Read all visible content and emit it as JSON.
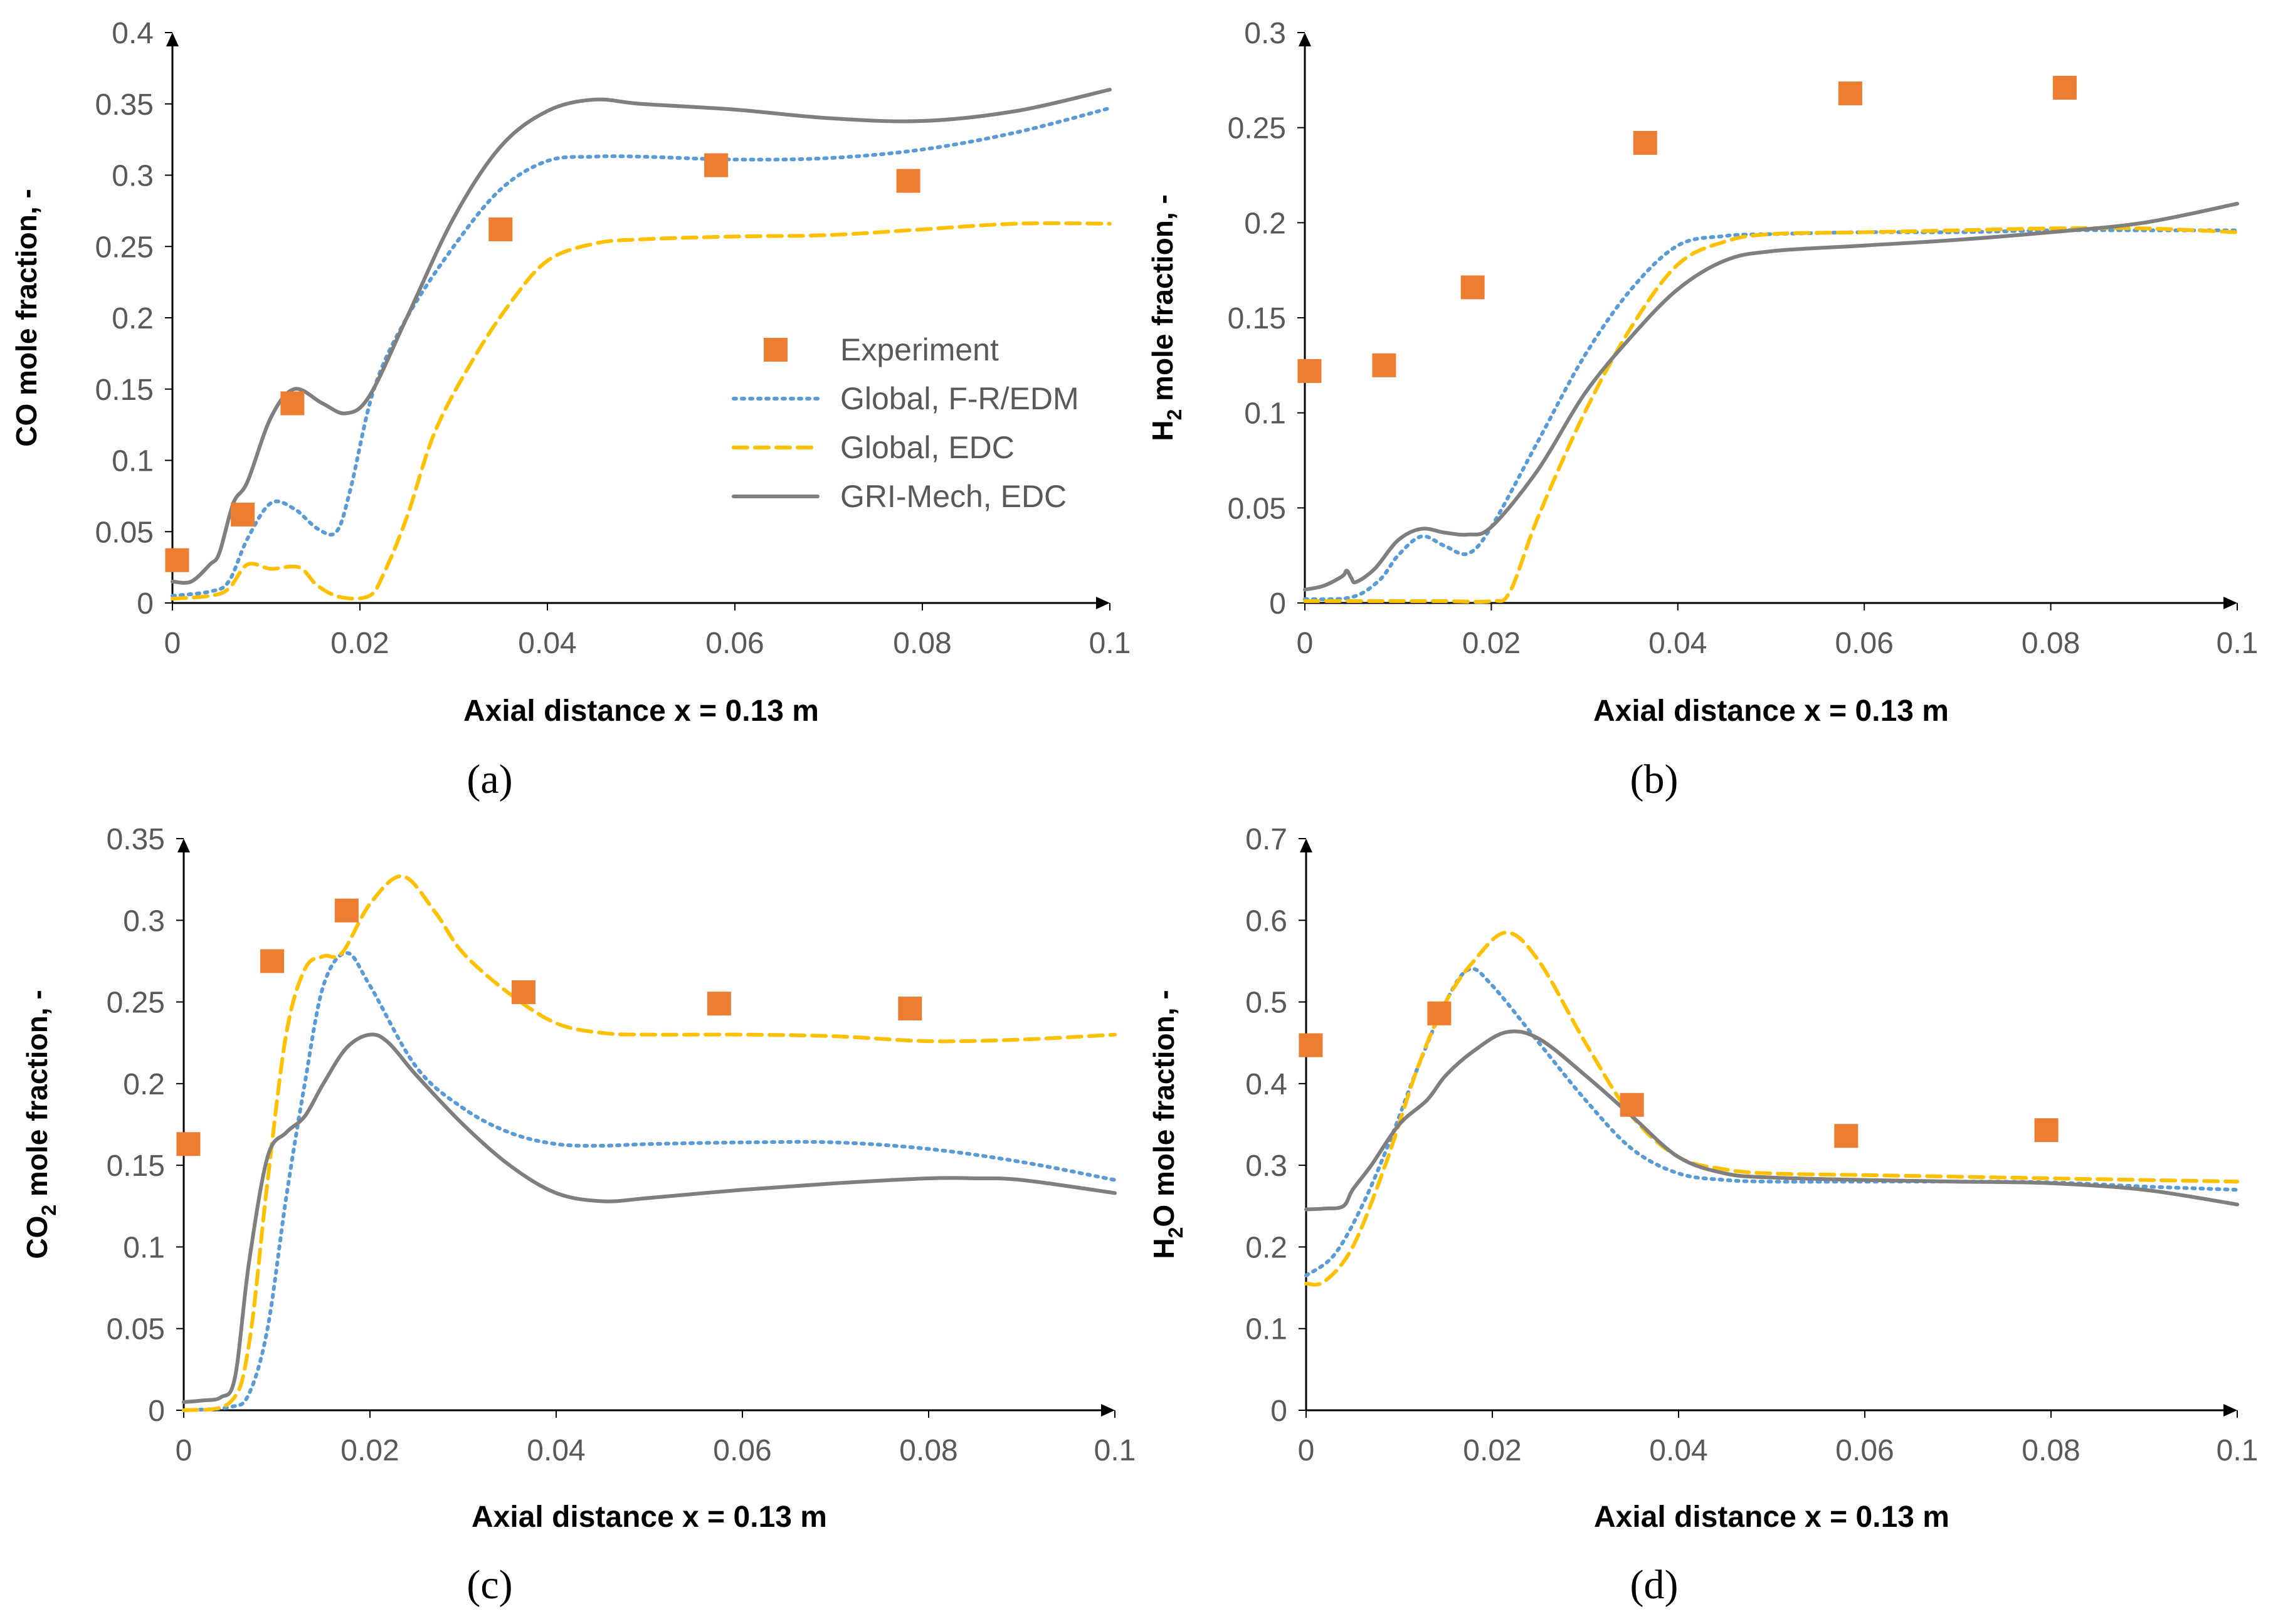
{
  "colors": {
    "experiment": "#ED7D31",
    "global_fr_edm": "#5B9BD5",
    "global_edc": "#FFC000",
    "gri_mech_edc": "#7F7F7F",
    "axis": "#000000",
    "tick_text": "#595959"
  },
  "legend": {
    "experiment": "Experiment",
    "global_fr_edm": "Global, F-R/EDM",
    "global_edc": "Global, EDC",
    "gri_mech_edc": "GRI-Mech, EDC"
  },
  "chart_data": [
    {
      "type": "line",
      "panel": "a",
      "caption": "(a)",
      "xlabel": "Axial distance x = 0.13 m",
      "ylabel": "CO mole fraction, -",
      "xlim": [
        0,
        0.1
      ],
      "ylim": [
        0,
        0.4
      ],
      "xticks": [
        "0",
        "0.02",
        "0.04",
        "0.06",
        "0.08",
        "0.1"
      ],
      "yticks": [
        "0",
        "0.05",
        "0.1",
        "0.15",
        "0.2",
        "0.25",
        "0.3",
        "0.35",
        "0.4"
      ],
      "xtick_values": [
        0,
        0.02,
        0.04,
        0.06,
        0.08,
        0.1
      ],
      "ytick_values": [
        0,
        0.05,
        0.1,
        0.15,
        0.2,
        0.25,
        0.3,
        0.35,
        0.4
      ],
      "legend_visible": true,
      "legend_position": "center-right",
      "series": [
        {
          "name": "Experiment",
          "kind": "scatter",
          "x": [
            0.0005,
            0.0075,
            0.0128,
            0.035,
            0.058,
            0.0785
          ],
          "y": [
            0.03,
            0.062,
            0.14,
            0.262,
            0.307,
            0.296
          ]
        },
        {
          "name": "Global, F-R/EDM",
          "kind": "dotted",
          "x": [
            0,
            0.004,
            0.006,
            0.008,
            0.0105,
            0.013,
            0.0155,
            0.0175,
            0.019,
            0.0215,
            0.025,
            0.03,
            0.035,
            0.04,
            0.045,
            0.05,
            0.06,
            0.07,
            0.08,
            0.09,
            0.1
          ],
          "y": [
            0.005,
            0.008,
            0.015,
            0.045,
            0.07,
            0.066,
            0.052,
            0.05,
            0.08,
            0.15,
            0.2,
            0.25,
            0.29,
            0.31,
            0.313,
            0.313,
            0.311,
            0.312,
            0.318,
            0.33,
            0.347
          ]
        },
        {
          "name": "Global, EDC",
          "kind": "dashed",
          "x": [
            0,
            0.004,
            0.006,
            0.008,
            0.0105,
            0.0135,
            0.0155,
            0.018,
            0.021,
            0.0225,
            0.025,
            0.028,
            0.032,
            0.036,
            0.04,
            0.045,
            0.05,
            0.06,
            0.07,
            0.08,
            0.09,
            0.1
          ],
          "y": [
            0.003,
            0.005,
            0.01,
            0.027,
            0.024,
            0.025,
            0.012,
            0.004,
            0.005,
            0.02,
            0.06,
            0.12,
            0.17,
            0.21,
            0.24,
            0.252,
            0.255,
            0.257,
            0.258,
            0.262,
            0.266,
            0.266
          ]
        },
        {
          "name": "GRI-Mech, EDC",
          "kind": "solid",
          "x": [
            0,
            0.002,
            0.004,
            0.005,
            0.0065,
            0.008,
            0.0105,
            0.013,
            0.016,
            0.0185,
            0.021,
            0.025,
            0.03,
            0.035,
            0.04,
            0.045,
            0.05,
            0.06,
            0.07,
            0.08,
            0.09,
            0.1
          ],
          "y": [
            0.015,
            0.015,
            0.027,
            0.035,
            0.07,
            0.085,
            0.13,
            0.15,
            0.14,
            0.133,
            0.145,
            0.2,
            0.27,
            0.32,
            0.345,
            0.353,
            0.35,
            0.346,
            0.34,
            0.338,
            0.345,
            0.36
          ]
        }
      ]
    },
    {
      "type": "line",
      "panel": "b",
      "caption": "(b)",
      "xlabel": "Axial distance x = 0.13 m",
      "ylabel": "H2 mole fraction, -",
      "ylabel_main": "H",
      "ylabel_sub": "2",
      "ylabel_rest": " mole fraction, -",
      "xlim": [
        0,
        0.1
      ],
      "ylim": [
        0,
        0.3
      ],
      "xticks": [
        "0",
        "0.02",
        "0.04",
        "0.06",
        "0.08",
        "0.1"
      ],
      "yticks": [
        "0",
        "0.05",
        "0.1",
        "0.15",
        "0.2",
        "0.25",
        "0.3"
      ],
      "xtick_values": [
        0,
        0.02,
        0.04,
        0.06,
        0.08,
        0.1
      ],
      "ytick_values": [
        0,
        0.05,
        0.1,
        0.15,
        0.2,
        0.25,
        0.3
      ],
      "legend_visible": false,
      "series": [
        {
          "name": "Experiment",
          "kind": "scatter",
          "x": [
            0.0005,
            0.0085,
            0.018,
            0.0365,
            0.0585,
            0.0815
          ],
          "y": [
            0.122,
            0.125,
            0.166,
            0.242,
            0.268,
            0.271
          ]
        },
        {
          "name": "Global, F-R/EDM",
          "kind": "dotted",
          "x": [
            0,
            0.005,
            0.008,
            0.01,
            0.0125,
            0.015,
            0.0175,
            0.02,
            0.025,
            0.03,
            0.035,
            0.04,
            0.045,
            0.05,
            0.06,
            0.07,
            0.08,
            0.09,
            0.1
          ],
          "y": [
            0.002,
            0.003,
            0.012,
            0.025,
            0.035,
            0.03,
            0.026,
            0.04,
            0.085,
            0.13,
            0.165,
            0.188,
            0.193,
            0.194,
            0.195,
            0.195,
            0.196,
            0.196,
            0.196
          ]
        },
        {
          "name": "Global, EDC",
          "kind": "dashed",
          "x": [
            0,
            0.005,
            0.01,
            0.015,
            0.02,
            0.022,
            0.025,
            0.03,
            0.035,
            0.04,
            0.045,
            0.05,
            0.06,
            0.07,
            0.08,
            0.09,
            0.1
          ],
          "y": [
            0.001,
            0.001,
            0.001,
            0.001,
            0.001,
            0.006,
            0.045,
            0.1,
            0.145,
            0.178,
            0.19,
            0.194,
            0.195,
            0.196,
            0.197,
            0.197,
            0.195
          ]
        },
        {
          "name": "GRI-Mech, EDC",
          "kind": "solid",
          "x": [
            0,
            0.002,
            0.004,
            0.0045,
            0.005,
            0.0055,
            0.0075,
            0.01,
            0.0125,
            0.015,
            0.0175,
            0.02,
            0.025,
            0.03,
            0.035,
            0.04,
            0.045,
            0.05,
            0.06,
            0.07,
            0.08,
            0.09,
            0.1
          ],
          "y": [
            0.007,
            0.009,
            0.014,
            0.017,
            0.013,
            0.011,
            0.018,
            0.033,
            0.039,
            0.037,
            0.036,
            0.04,
            0.07,
            0.11,
            0.14,
            0.165,
            0.18,
            0.185,
            0.188,
            0.191,
            0.195,
            0.2,
            0.21
          ]
        }
      ]
    },
    {
      "type": "line",
      "panel": "c",
      "caption": "(c)",
      "xlabel": "Axial distance x = 0.13 m",
      "ylabel": "CO2 mole fraction, -",
      "ylabel_main": "CO",
      "ylabel_sub": "2",
      "ylabel_rest": " mole fraction, -",
      "xlim": [
        0,
        0.1
      ],
      "ylim": [
        0,
        0.35
      ],
      "xticks": [
        "0",
        "0.02",
        "0.04",
        "0.06",
        "0.08",
        "0.1"
      ],
      "yticks": [
        "0",
        "0.05",
        "0.1",
        "0.15",
        "0.2",
        "0.25",
        "0.3",
        "0.35"
      ],
      "xtick_values": [
        0,
        0.02,
        0.04,
        0.06,
        0.08,
        0.1
      ],
      "ytick_values": [
        0,
        0.05,
        0.1,
        0.15,
        0.2,
        0.25,
        0.3,
        0.35
      ],
      "legend_visible": false,
      "series": [
        {
          "name": "Experiment",
          "kind": "scatter",
          "x": [
            0.0005,
            0.0095,
            0.0175,
            0.0365,
            0.0575,
            0.078
          ],
          "y": [
            0.163,
            0.275,
            0.306,
            0.256,
            0.249,
            0.246
          ]
        },
        {
          "name": "Global, F-R/EDM",
          "kind": "dotted",
          "x": [
            0,
            0.005,
            0.007,
            0.009,
            0.011,
            0.013,
            0.015,
            0.0175,
            0.02,
            0.025,
            0.03,
            0.035,
            0.04,
            0.045,
            0.05,
            0.06,
            0.07,
            0.08,
            0.09,
            0.1
          ],
          "y": [
            0,
            0.002,
            0.01,
            0.05,
            0.13,
            0.2,
            0.26,
            0.28,
            0.26,
            0.21,
            0.185,
            0.17,
            0.163,
            0.162,
            0.163,
            0.164,
            0.164,
            0.16,
            0.152,
            0.141
          ]
        },
        {
          "name": "Global, EDC",
          "kind": "dashed",
          "x": [
            0,
            0.005,
            0.007,
            0.009,
            0.011,
            0.013,
            0.015,
            0.017,
            0.02,
            0.0235,
            0.027,
            0.03,
            0.035,
            0.04,
            0.045,
            0.05,
            0.06,
            0.07,
            0.08,
            0.09,
            0.1
          ],
          "y": [
            0,
            0.005,
            0.04,
            0.14,
            0.23,
            0.27,
            0.278,
            0.28,
            0.31,
            0.327,
            0.305,
            0.28,
            0.255,
            0.237,
            0.231,
            0.23,
            0.23,
            0.229,
            0.226,
            0.227,
            0.23
          ]
        },
        {
          "name": "GRI-Mech, EDC",
          "kind": "solid",
          "x": [
            0,
            0.002,
            0.004,
            0.0055,
            0.007,
            0.009,
            0.011,
            0.013,
            0.015,
            0.0175,
            0.02,
            0.022,
            0.025,
            0.03,
            0.035,
            0.04,
            0.045,
            0.05,
            0.06,
            0.07,
            0.08,
            0.085,
            0.09,
            0.1
          ],
          "y": [
            0.005,
            0.006,
            0.008,
            0.02,
            0.09,
            0.155,
            0.17,
            0.18,
            0.2,
            0.222,
            0.23,
            0.225,
            0.205,
            0.175,
            0.15,
            0.133,
            0.128,
            0.13,
            0.135,
            0.139,
            0.142,
            0.142,
            0.141,
            0.133
          ]
        }
      ]
    },
    {
      "type": "line",
      "panel": "d",
      "caption": "(d)",
      "xlabel": "Axial distance x = 0.13 m",
      "ylabel": "H2O mole fraction, -",
      "ylabel_main": "H",
      "ylabel_sub": "2",
      "ylabel_rest": "O mole fraction, -",
      "xlim": [
        0,
        0.1
      ],
      "ylim": [
        0,
        0.7
      ],
      "xticks": [
        "0",
        "0.02",
        "0.04",
        "0.06",
        "0.08",
        "0.1"
      ],
      "yticks": [
        "0",
        "0.1",
        "0.2",
        "0.3",
        "0.4",
        "0.5",
        "0.6",
        "0.7"
      ],
      "xtick_values": [
        0,
        0.02,
        0.04,
        0.06,
        0.08,
        0.1
      ],
      "ytick_values": [
        0,
        0.1,
        0.2,
        0.3,
        0.4,
        0.5,
        0.6,
        0.7
      ],
      "legend_visible": false,
      "series": [
        {
          "name": "Experiment",
          "kind": "scatter",
          "x": [
            0.0005,
            0.0143,
            0.035,
            0.058,
            0.0795
          ],
          "y": [
            0.447,
            0.486,
            0.374,
            0.336,
            0.343
          ]
        },
        {
          "name": "Global, F-R/EDM",
          "kind": "dotted",
          "x": [
            0,
            0.003,
            0.006,
            0.009,
            0.012,
            0.015,
            0.0175,
            0.02,
            0.025,
            0.03,
            0.035,
            0.04,
            0.045,
            0.05,
            0.06,
            0.07,
            0.08,
            0.09,
            0.1
          ],
          "y": [
            0.165,
            0.19,
            0.25,
            0.33,
            0.42,
            0.5,
            0.54,
            0.52,
            0.45,
            0.38,
            0.32,
            0.29,
            0.282,
            0.28,
            0.28,
            0.28,
            0.279,
            0.274,
            0.27
          ]
        },
        {
          "name": "Global, EDC",
          "kind": "dashed",
          "x": [
            0,
            0.002,
            0.005,
            0.0085,
            0.012,
            0.015,
            0.018,
            0.0215,
            0.025,
            0.03,
            0.035,
            0.04,
            0.045,
            0.05,
            0.06,
            0.07,
            0.08,
            0.09,
            0.1
          ],
          "y": [
            0.155,
            0.158,
            0.2,
            0.3,
            0.42,
            0.5,
            0.55,
            0.585,
            0.55,
            0.45,
            0.36,
            0.31,
            0.295,
            0.29,
            0.288,
            0.286,
            0.284,
            0.282,
            0.28
          ]
        },
        {
          "name": "GRI-Mech, EDC",
          "kind": "solid",
          "x": [
            0,
            0.002,
            0.004,
            0.005,
            0.007,
            0.01,
            0.013,
            0.015,
            0.018,
            0.0215,
            0.025,
            0.03,
            0.035,
            0.04,
            0.045,
            0.05,
            0.06,
            0.07,
            0.08,
            0.09,
            0.1
          ],
          "y": [
            0.246,
            0.247,
            0.25,
            0.27,
            0.3,
            0.35,
            0.38,
            0.41,
            0.44,
            0.463,
            0.455,
            0.41,
            0.36,
            0.31,
            0.29,
            0.285,
            0.282,
            0.28,
            0.278,
            0.27,
            0.252
          ]
        }
      ]
    }
  ]
}
